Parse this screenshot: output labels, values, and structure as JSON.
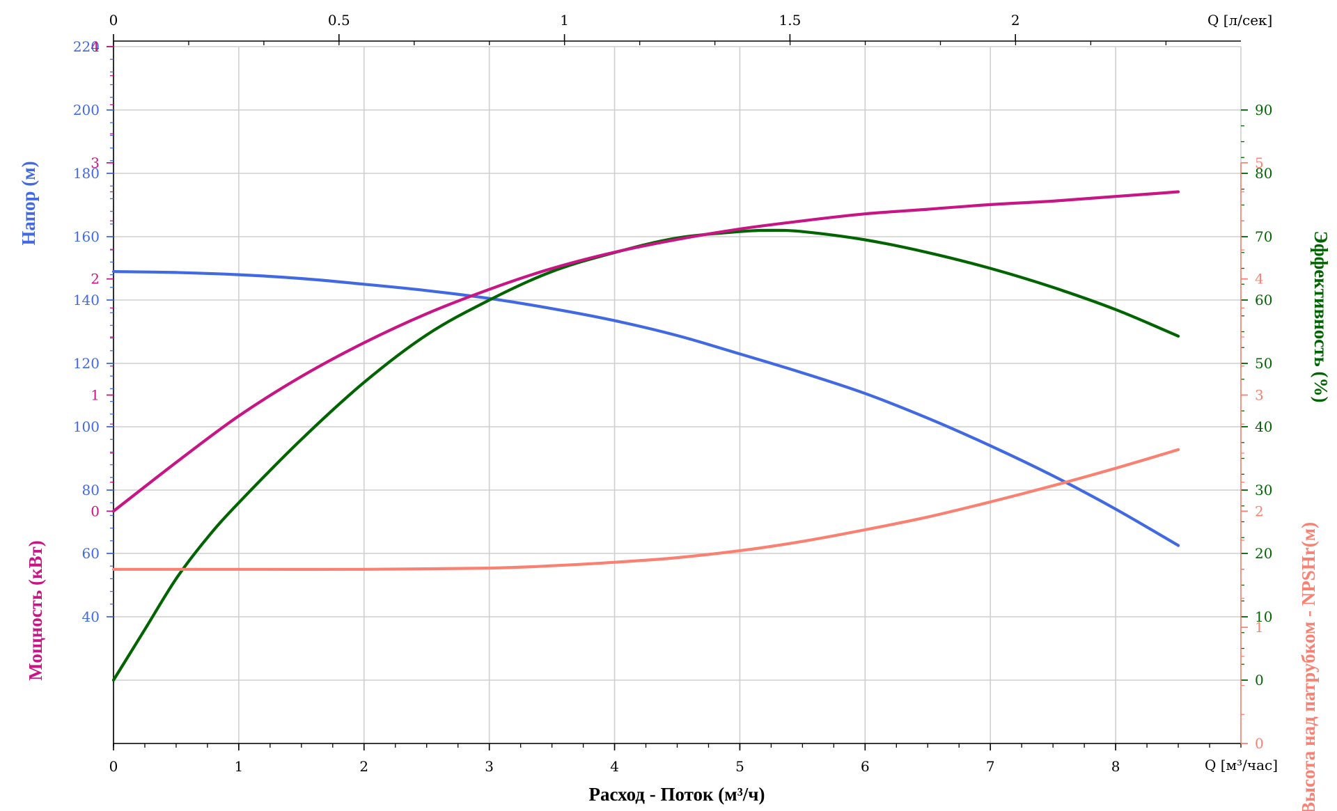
{
  "chart_data": {
    "type": "line",
    "xlabel": "Расход - Поток (м³/ч)",
    "x_unit_label": "Q [м³/час]",
    "x_top_unit_label": "Q [л/сек]",
    "xlim": [
      0,
      9
    ],
    "x_ticks": [
      0,
      1,
      2,
      3,
      4,
      5,
      6,
      7,
      8
    ],
    "x_top_ticks": [
      0,
      0.5,
      1,
      1.5,
      2
    ],
    "grid": true,
    "colors": {
      "head": "#4169e1",
      "efficiency": "#006400",
      "power": "#c71585",
      "npsh": "#fa8072",
      "grid": "#cfcfcf",
      "text": "#000000"
    },
    "axes": {
      "head": {
        "label": "Напор (м)",
        "range": [
          0,
          220
        ],
        "ticks": [
          40,
          60,
          80,
          100,
          120,
          140,
          160,
          180,
          200,
          220
        ]
      },
      "efficiency": {
        "label": "Эффективность (%)",
        "range": [
          -10,
          100
        ],
        "ticks": [
          0,
          10,
          20,
          30,
          40,
          50,
          60,
          70,
          80,
          90
        ]
      },
      "power": {
        "label": "Мощность (кВт)",
        "range": [
          -2,
          4
        ],
        "ticks": [
          0,
          1,
          2,
          3,
          4
        ]
      },
      "npsh": {
        "label": "Высота над патрубком - NPSHr(м)",
        "range": [
          0,
          6
        ],
        "ticks": [
          0,
          1,
          2,
          3,
          4,
          5
        ]
      }
    },
    "series": [
      {
        "name": "Напор (м)",
        "axis": "head",
        "x": [
          0,
          0.5,
          1,
          1.5,
          2,
          2.5,
          3,
          3.5,
          4,
          4.5,
          5,
          5.5,
          6,
          6.5,
          7,
          7.5,
          8,
          8.5
        ],
        "y": [
          149,
          148.7,
          148,
          146.8,
          145,
          143,
          140.5,
          137.3,
          133.5,
          128.8,
          123,
          117,
          110.5,
          102.7,
          94,
          84.5,
          74,
          62.5
        ]
      },
      {
        "name": "Эффективность (%)",
        "axis": "efficiency",
        "x": [
          0,
          0.25,
          0.5,
          0.75,
          1,
          1.5,
          2,
          2.5,
          3,
          3.5,
          4,
          4.5,
          5,
          5.25,
          5.5,
          6,
          6.5,
          7,
          7.5,
          8,
          8.5
        ],
        "y": [
          0,
          8,
          16,
          22.5,
          28,
          38,
          47,
          54.5,
          60,
          64.5,
          67.5,
          69.8,
          70.8,
          71,
          70.8,
          69.5,
          67.5,
          65,
          62,
          58.5,
          54.3
        ]
      },
      {
        "name": "Мощность (кВт)",
        "axis": "power",
        "x": [
          0,
          0.5,
          1,
          1.5,
          2,
          2.5,
          3,
          3.5,
          4,
          4.5,
          5,
          5.5,
          6,
          6.5,
          7,
          7.5,
          8,
          8.5
        ],
        "y": [
          0,
          0.42,
          0.82,
          1.16,
          1.45,
          1.7,
          1.91,
          2.09,
          2.23,
          2.34,
          2.43,
          2.5,
          2.56,
          2.6,
          2.64,
          2.67,
          2.71,
          2.75
        ]
      },
      {
        "name": "NPSHr (м)",
        "axis": "npsh",
        "x": [
          0,
          1,
          2,
          3,
          3.5,
          4,
          4.5,
          5,
          5.5,
          6,
          6.5,
          7,
          7.5,
          8,
          8.5
        ],
        "y": [
          1.5,
          1.5,
          1.5,
          1.51,
          1.53,
          1.56,
          1.6,
          1.66,
          1.74,
          1.84,
          1.95,
          2.08,
          2.22,
          2.37,
          2.53
        ]
      }
    ]
  }
}
